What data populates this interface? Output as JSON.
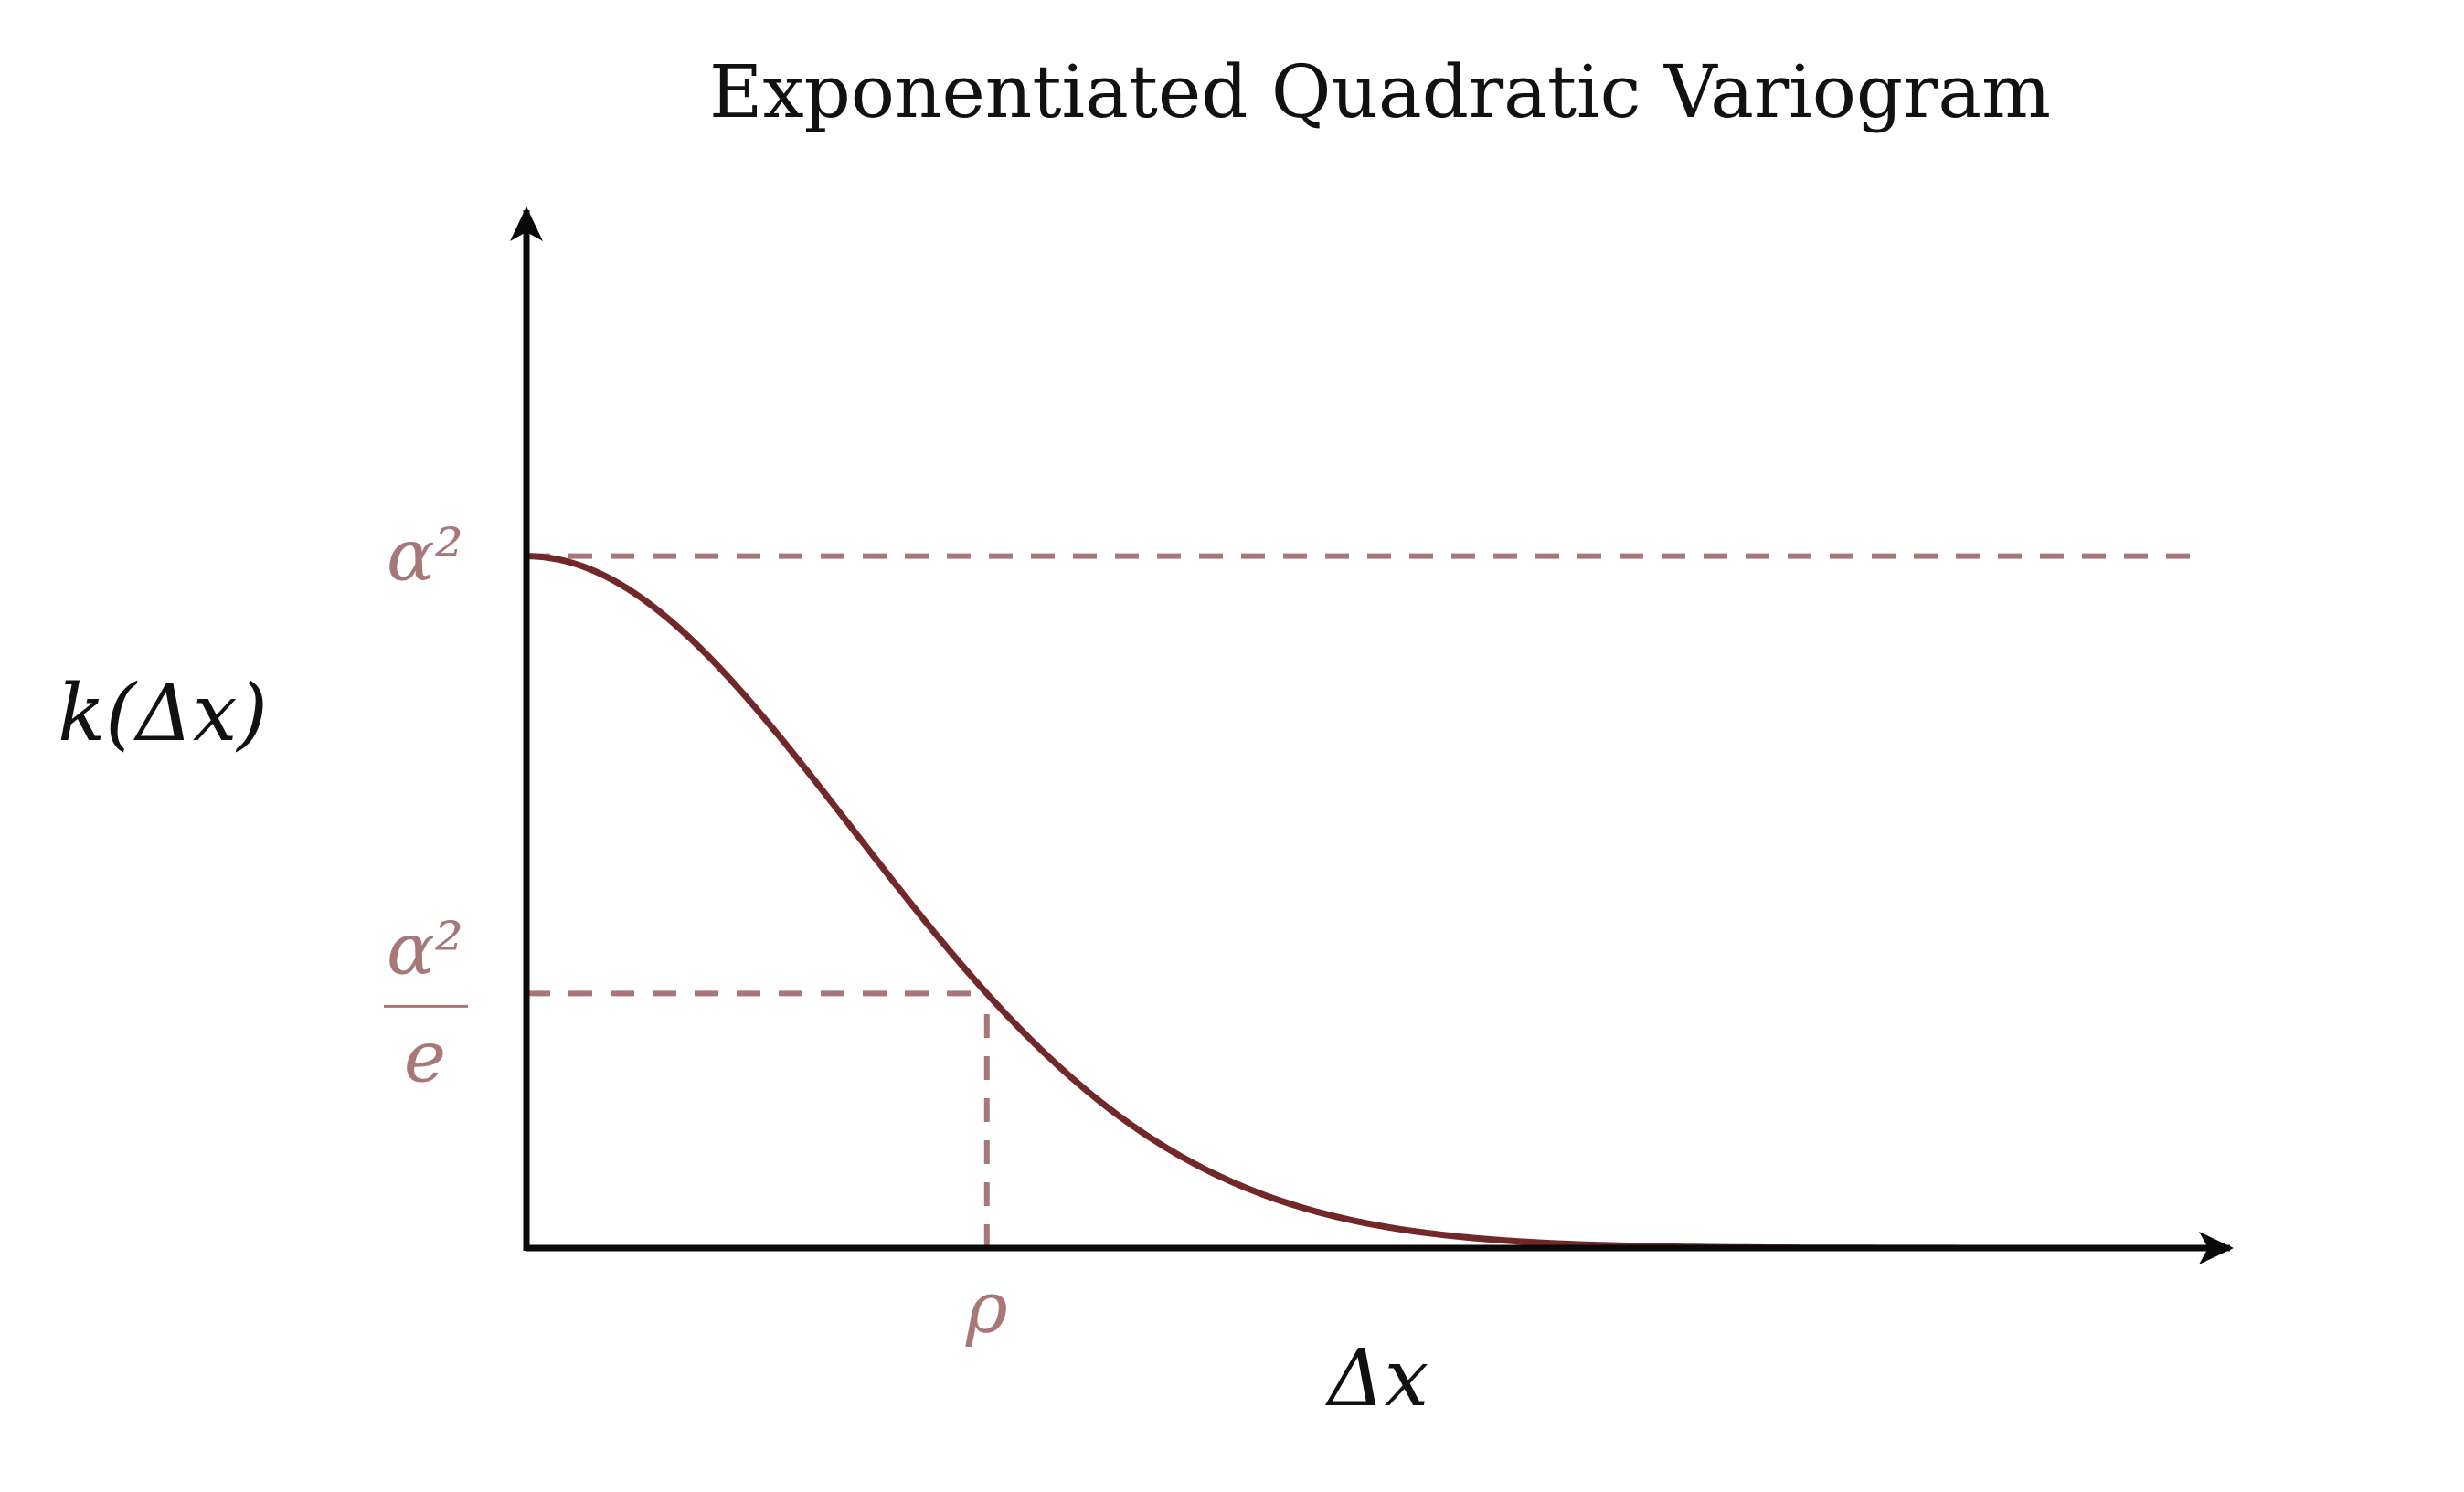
{
  "chart_data": {
    "type": "line",
    "title": "Exponentiated Quadratic Variogram",
    "xlabel": "Δx",
    "ylabel": "k(Δx)",
    "series": [],
    "function": "alpha^2 * exp(-(dx/rho)^2)",
    "x": [
      0,
      0.2,
      0.4,
      0.6,
      0.8,
      1.0,
      1.2,
      1.4,
      1.6,
      1.8,
      2.0,
      2.5,
      3.0,
      3.5
    ],
    "y": [
      1.0,
      0.961,
      0.852,
      0.698,
      0.527,
      0.368,
      0.237,
      0.141,
      0.077,
      0.039,
      0.018,
      0.002,
      0.0001,
      0.0
    ],
    "xlim": [
      0,
      3.7
    ],
    "ylim": [
      0,
      1.5
    ],
    "y_ticks": [
      {
        "value": 1.0,
        "numerator": "α²",
        "denominator": ""
      },
      {
        "value": 0.3679,
        "numerator": "α²",
        "denominator": "e"
      }
    ],
    "x_ticks": [
      {
        "value": 1.0,
        "label": "ρ"
      }
    ],
    "reference_lines": [
      {
        "orientation": "horizontal",
        "y": 1.0,
        "from_x": 0,
        "to_x": 3.65
      },
      {
        "orientation": "horizontal",
        "y": 0.3679,
        "from_x": 0,
        "to_x": 1.0
      },
      {
        "orientation": "vertical",
        "x": 1.0,
        "from_y": 0,
        "to_y": 0.3679
      }
    ],
    "grid": false,
    "colors": {
      "curve": "#722828",
      "reference": "#a87878",
      "axis": "#0a0a0a"
    }
  }
}
